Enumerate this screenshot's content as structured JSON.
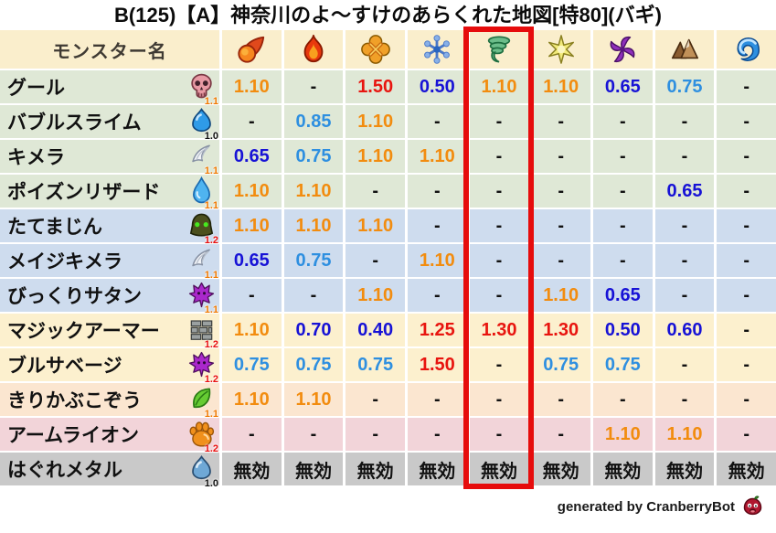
{
  "title": "B(125)【A】神奈川のよ〜すけのあらくれた地図[特80](バギ)",
  "table": {
    "name_header": "モンスター名",
    "element_columns": [
      {
        "icon": "fireball-icon"
      },
      {
        "icon": "flame-icon"
      },
      {
        "icon": "explosion-icon"
      },
      {
        "icon": "snowflake-icon"
      },
      {
        "icon": "tornado-icon",
        "highlighted": true
      },
      {
        "icon": "sparkle-icon"
      },
      {
        "icon": "dark-swirl-icon"
      },
      {
        "icon": "mountain-icon"
      },
      {
        "icon": "wave-icon"
      }
    ],
    "highlighted_column_index": 4,
    "rows": [
      {
        "name": "グール",
        "icon": "skull-icon",
        "version": "1.1",
        "band": "green",
        "values": [
          "1.10",
          "-",
          "1.50",
          "0.50",
          "1.10",
          "1.10",
          "0.65",
          "0.75",
          "-"
        ]
      },
      {
        "name": "バブルスライム",
        "icon": "slime-blue-icon",
        "version": "1.0",
        "band": "green",
        "values": [
          "-",
          "0.85",
          "1.10",
          "-",
          "-",
          "-",
          "-",
          "-",
          "-"
        ]
      },
      {
        "name": "キメラ",
        "icon": "wing-icon",
        "version": "1.1",
        "band": "green",
        "values": [
          "0.65",
          "0.75",
          "1.10",
          "1.10",
          "-",
          "-",
          "-",
          "-",
          "-"
        ]
      },
      {
        "name": "ポイズンリザード",
        "icon": "waterdrop-icon",
        "version": "1.1",
        "band": "green",
        "values": [
          "1.10",
          "1.10",
          "-",
          "-",
          "-",
          "-",
          "-",
          "0.65",
          "-"
        ]
      },
      {
        "name": "たてまじん",
        "icon": "helmet-icon",
        "version": "1.2",
        "band": "blue",
        "values": [
          "1.10",
          "1.10",
          "1.10",
          "-",
          "-",
          "-",
          "-",
          "-",
          "-"
        ]
      },
      {
        "name": "メイジキメラ",
        "icon": "wing-icon",
        "version": "1.1",
        "band": "blue",
        "values": [
          "0.65",
          "0.75",
          "-",
          "1.10",
          "-",
          "-",
          "-",
          "-",
          "-"
        ]
      },
      {
        "name": "びっくりサタン",
        "icon": "trident-icon",
        "version": "1.1",
        "band": "blue",
        "values": [
          "-",
          "-",
          "1.10",
          "-",
          "-",
          "1.10",
          "0.65",
          "-",
          "-"
        ]
      },
      {
        "name": "マジックアーマー",
        "icon": "brick-icon",
        "version": "1.2",
        "band": "cream",
        "values": [
          "1.10",
          "0.70",
          "0.40",
          "1.25",
          "1.30",
          "1.30",
          "0.50",
          "0.60",
          "-"
        ]
      },
      {
        "name": "ブルサベージ",
        "icon": "trident-icon",
        "version": "1.2",
        "band": "cream",
        "values": [
          "0.75",
          "0.75",
          "0.75",
          "1.50",
          "-",
          "0.75",
          "0.75",
          "-",
          "-"
        ]
      },
      {
        "name": "きりかぶこぞう",
        "icon": "leaf-icon",
        "version": "1.1",
        "band": "peach",
        "values": [
          "1.10",
          "1.10",
          "-",
          "-",
          "-",
          "-",
          "-",
          "-",
          "-"
        ]
      },
      {
        "name": "アームライオン",
        "icon": "paw-icon",
        "version": "1.2",
        "band": "pink",
        "values": [
          "-",
          "-",
          "-",
          "-",
          "-",
          "-",
          "1.10",
          "1.10",
          "-"
        ]
      },
      {
        "name": "はぐれメタル",
        "icon": "slime-silver-icon",
        "version": "1.0",
        "band": "gray",
        "values": [
          "無効",
          "無効",
          "無効",
          "無効",
          "無効",
          "無効",
          "無効",
          "無効",
          "無効"
        ]
      }
    ]
  },
  "footer": {
    "credit": "generated by CranberryBot",
    "icon": "cranberry-bot-icon"
  },
  "colors": {
    "value_orange": "#F28C0F",
    "value_red": "#E8150F",
    "value_light_blue": "#2E8FE0",
    "value_dark_blue": "#1712D6",
    "value_black": "#111111",
    "band_green": "#DFE8D6",
    "band_blue": "#CEDCEE",
    "band_cream": "#FCF0CE",
    "band_peach": "#FBE6D0",
    "band_pink": "#F2D4D9",
    "band_gray": "#C9C9C9",
    "header_bg": "#FAEECC",
    "highlight_box": "#E60C0C",
    "version_colors": {
      "1.0": "#111111",
      "1.1": "#F07800",
      "1.2": "#E81010"
    }
  },
  "chart_data": {
    "type": "table",
    "title": "B(125)【A】神奈川のよ〜すけのあらくれた地図[特80](バギ)",
    "columns": [
      "モンスター名",
      "fireball-icon",
      "flame-icon",
      "explosion-icon",
      "snowflake-icon",
      "tornado-icon",
      "sparkle-icon",
      "dark-swirl-icon",
      "mountain-icon",
      "wave-icon"
    ],
    "highlighted_column": "tornado-icon",
    "value_color_rule": {
      ">=1.25": "red",
      ">=1.00": "orange",
      ">=0.75": "light-blue",
      "<0.75": "dark-blue",
      "-": "black",
      "無効": "black"
    },
    "rows": [
      [
        "グール (1.1)",
        "1.10",
        "-",
        "1.50",
        "0.50",
        "1.10",
        "1.10",
        "0.65",
        "0.75",
        "-"
      ],
      [
        "バブルスライム (1.0)",
        "-",
        "0.85",
        "1.10",
        "-",
        "-",
        "-",
        "-",
        "-",
        "-"
      ],
      [
        "キメラ (1.1)",
        "0.65",
        "0.75",
        "1.10",
        "1.10",
        "-",
        "-",
        "-",
        "-",
        "-"
      ],
      [
        "ポイズンリザード (1.1)",
        "1.10",
        "1.10",
        "-",
        "-",
        "-",
        "-",
        "-",
        "0.65",
        "-"
      ],
      [
        "たてまじん (1.2)",
        "1.10",
        "1.10",
        "1.10",
        "-",
        "-",
        "-",
        "-",
        "-",
        "-"
      ],
      [
        "メイジキメラ (1.1)",
        "0.65",
        "0.75",
        "-",
        "1.10",
        "-",
        "-",
        "-",
        "-",
        "-"
      ],
      [
        "びっくりサタン (1.1)",
        "-",
        "-",
        "1.10",
        "-",
        "-",
        "1.10",
        "0.65",
        "-",
        "-"
      ],
      [
        "マジックアーマー (1.2)",
        "1.10",
        "0.70",
        "0.40",
        "1.25",
        "1.30",
        "1.30",
        "0.50",
        "0.60",
        "-"
      ],
      [
        "ブルサベージ (1.2)",
        "0.75",
        "0.75",
        "0.75",
        "1.50",
        "-",
        "0.75",
        "0.75",
        "-",
        "-"
      ],
      [
        "きりかぶこぞう (1.1)",
        "1.10",
        "1.10",
        "-",
        "-",
        "-",
        "-",
        "-",
        "-",
        "-"
      ],
      [
        "アームライオン (1.2)",
        "-",
        "-",
        "-",
        "-",
        "-",
        "-",
        "1.10",
        "1.10",
        "-"
      ],
      [
        "はぐれメタル (1.0)",
        "無効",
        "無効",
        "無効",
        "無効",
        "無効",
        "無効",
        "無効",
        "無効",
        "無効"
      ]
    ]
  }
}
